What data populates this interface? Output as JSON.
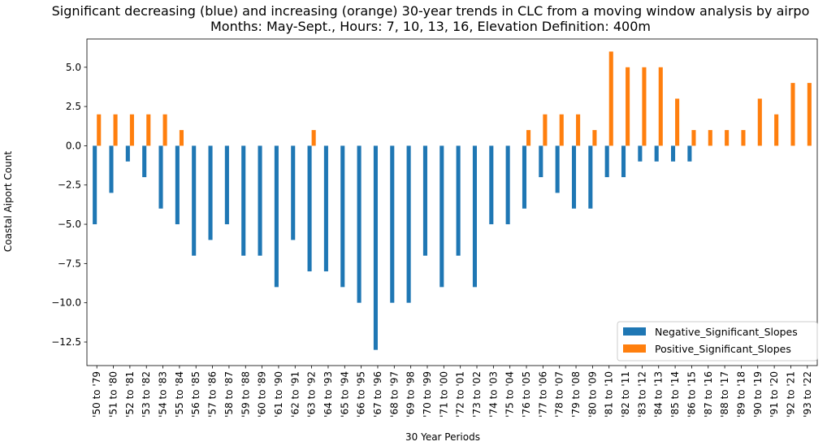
{
  "chart_data": {
    "type": "bar",
    "title_line1": "Significant decreasing (blue) and increasing (orange) 30-year trends in CLC from a moving window analysis by airpo",
    "title_line2": "Months: May-Sept., Hours: 7, 10, 13, 16, Elevation Definition: 400m",
    "xlabel": "30 Year Periods",
    "ylabel": "Coastal Aiport Count",
    "ylim": [
      -14,
      6.8
    ],
    "yticks": [
      -12.5,
      -10.0,
      -7.5,
      -5.0,
      -2.5,
      0.0,
      2.5,
      5.0
    ],
    "ytick_labels": [
      "−12.5",
      "−10.0",
      "−7.5",
      "−5.0",
      "−2.5",
      "0.0",
      "2.5",
      "5.0"
    ],
    "legend_position": "lower-right",
    "categories": [
      "'50 to '79",
      "'51 to '80",
      "'52 to '81",
      "'53 to '82",
      "'54 to '83",
      "'55 to '84",
      "'56 to '85",
      "'57 to '86",
      "'58 to '87",
      "'59 to '88",
      "'60 to '89",
      "'61 to '90",
      "'62 to '91",
      "'63 to '92",
      "'64 to '93",
      "'65 to '94",
      "'66 to '95",
      "'67 to '96",
      "'68 to '97",
      "'69 to '98",
      "'70 to '99",
      "'71 to '00",
      "'72 to '01",
      "'73 to '02",
      "'74 to '03",
      "'75 to '04",
      "'76 to '05",
      "'77 to '06",
      "'78 to '07",
      "'79 to '08",
      "'80 to '09",
      "'81 to '10",
      "'82 to '11",
      "'83 to '12",
      "'84 to '13",
      "'85 to '14",
      "'86 to '15",
      "'87 to '16",
      "'88 to '17",
      "'89 to '18",
      "'90 to '19",
      "'91 to '20",
      "'92 to '21",
      "'93 to '22"
    ],
    "series": [
      {
        "name": "Negative_Significant_Slopes",
        "color": "#1f77b4",
        "values": [
          -5,
          -3,
          -1,
          -2,
          -4,
          -5,
          -7,
          -6,
          -5,
          -7,
          -7,
          -9,
          -6,
          -8,
          -8,
          -9,
          -10,
          -13,
          -10,
          -10,
          -7,
          -9,
          -7,
          -9,
          -5,
          -5,
          -4,
          -2,
          -3,
          -4,
          -4,
          -2,
          -2,
          -1,
          -1,
          -1,
          -1,
          0,
          0,
          0,
          0,
          0,
          0,
          0
        ]
      },
      {
        "name": "Positive_Significant_Slopes",
        "color": "#ff7f0e",
        "values": [
          2,
          2,
          2,
          2,
          2,
          1,
          0,
          0,
          0,
          0,
          0,
          0,
          0,
          1,
          0,
          0,
          0,
          0,
          0,
          0,
          0,
          0,
          0,
          0,
          0,
          0,
          1,
          2,
          2,
          2,
          1,
          6,
          5,
          5,
          5,
          3,
          1,
          1,
          1,
          1,
          3,
          2,
          4,
          4
        ]
      }
    ]
  }
}
